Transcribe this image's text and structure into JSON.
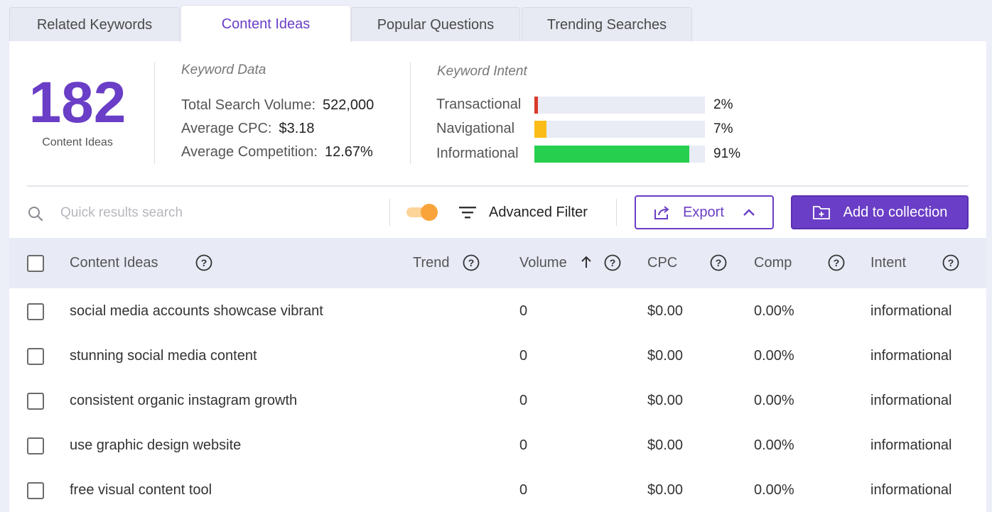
{
  "tabs": [
    {
      "label": "Related Keywords",
      "active": false
    },
    {
      "label": "Content Ideas",
      "active": true
    },
    {
      "label": "Popular Questions",
      "active": false
    },
    {
      "label": "Trending Searches",
      "active": false
    }
  ],
  "summary": {
    "count": "182",
    "count_label": "Content Ideas"
  },
  "keyword_data": {
    "title": "Keyword Data",
    "total_volume_label": "Total Search Volume:",
    "total_volume": "522,000",
    "avg_cpc_label": "Average CPC:",
    "avg_cpc": "$3.18",
    "avg_comp_label": "Average Competition:",
    "avg_comp": "12.67%"
  },
  "keyword_intent": {
    "title": "Keyword Intent",
    "items": [
      {
        "label": "Transactional",
        "pct_text": "2%",
        "value": 2,
        "color": "#d93b2b"
      },
      {
        "label": "Navigational",
        "pct_text": "7%",
        "value": 7,
        "color": "#fbbc17"
      },
      {
        "label": "Informational",
        "pct_text": "91%",
        "value": 91,
        "color": "#26cf4d"
      }
    ]
  },
  "toolbar": {
    "search_placeholder": "Quick results search",
    "advanced_filter_label": "Advanced Filter",
    "export_label": "Export",
    "add_collection_label": "Add to collection",
    "toggle_on": true
  },
  "table": {
    "headers": {
      "content_ideas": "Content Ideas",
      "trend": "Trend",
      "volume": "Volume",
      "cpc": "CPC",
      "comp": "Comp",
      "intent": "Intent"
    },
    "rows": [
      {
        "idea": "social media accounts showcase vibrant",
        "volume": "0",
        "cpc": "$0.00",
        "comp": "0.00%",
        "intent": "informational"
      },
      {
        "idea": "stunning social media content",
        "volume": "0",
        "cpc": "$0.00",
        "comp": "0.00%",
        "intent": "informational"
      },
      {
        "idea": "consistent organic instagram growth",
        "volume": "0",
        "cpc": "$0.00",
        "comp": "0.00%",
        "intent": "informational"
      },
      {
        "idea": "use graphic design website",
        "volume": "0",
        "cpc": "$0.00",
        "comp": "0.00%",
        "intent": "informational"
      },
      {
        "idea": "free visual content tool",
        "volume": "0",
        "cpc": "$0.00",
        "comp": "0.00%",
        "intent": "informational"
      }
    ]
  },
  "colors": {
    "accent": "#6a3ec6",
    "toggle": "#f9a43a",
    "header_bg": "#e8eaf6"
  }
}
